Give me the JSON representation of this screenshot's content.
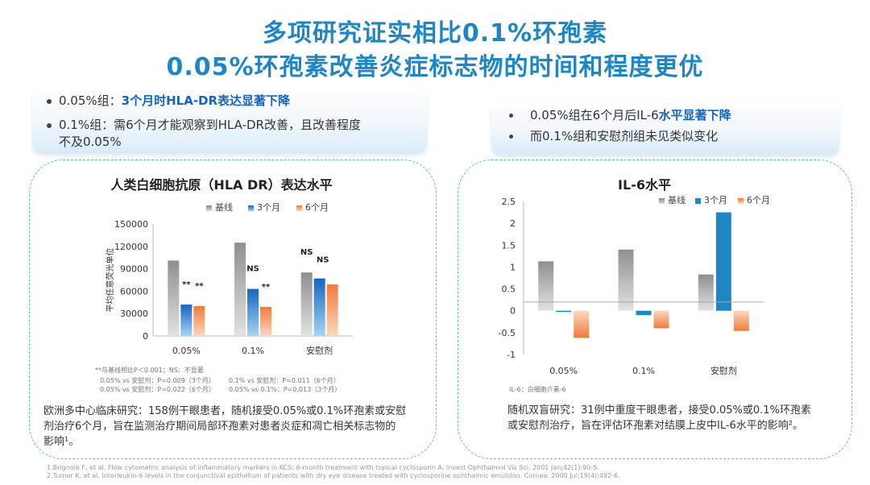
{
  "header": {
    "title_line1": "多项研究证实相比0.1%环孢素",
    "title_line2": "0.05%环孢素改善炎症标志物的时间和程度更优"
  },
  "left_bullets": {
    "b1_prefix": "0.05%组：",
    "b1_highlight": "3个月时HLA-DR表达显著下降",
    "b2_line1": "0.1%组：需6个月才能观察到HLA-DR改善，且改善程度",
    "b2_line2": "不及0.05%"
  },
  "right_bullets": {
    "b1_prefix": "0.05%组在6个月后IL-6",
    "b1_highlight": "水平显著下降",
    "b2": "而0.1%组和安慰剂组未见类似变化"
  },
  "left_panel": {
    "notes": {
      "line1": "**与基线相比P＜0.001；NS：不显著",
      "line2a": "0.05% vs 安慰剂：P=0.009（3个月）",
      "line2b": "0.1% vs 安慰剂：P=0.011（6个月）",
      "line3a": "0.05% vs 安慰剂：P=0.022（6个月）",
      "line3b": "0.05% vs 0.1%：P=0.013（3个月）"
    },
    "description_line1": "欧洲多中心临床研究：158例干眼患者，随机接受0.05%或0.1%环孢素或安慰",
    "description_line2": "剂治疗6个月，旨在监测治疗期间局部环孢素对患者炎症和凋亡相关标志物的",
    "description_line3": "影响¹。"
  },
  "right_panel": {
    "footnote": "IL-6：白细胞介素-6",
    "description_line1": "随机双盲研究：31例中重度干眼患者，接受0.05%或0.1%环孢素",
    "description_line2": "或安慰剂治疗，旨在评估环孢素对结膜上皮中IL-6水平的影响²。"
  },
  "references": {
    "r1": "1.Brignole F, et al. Flow cytometric analysis of inflammatory markers in KCS: 6-month treatment with topical cyclosporin A. Invest Ophthalmol Vis Sci. 2001 Jan;42(1):90-5.",
    "r2": "2.Turner K, et al. Interleukin-6 levels in the conjunctival epithelium of patients with dry eye disease treated with cyclosporine ophthalmic emulsion. Cornea. 2000 Jul;19(4):492-6."
  },
  "colors": {
    "baseline": "#9e9e9e",
    "month3": "#1f86c6",
    "month6": "#f08a4b",
    "title": "#1f86c6",
    "panel_border": "#58c8aa"
  },
  "chart_data": [
    {
      "type": "bar",
      "title": "人类白细胞抗原（HLA DR）表达水平",
      "ylabel": "平均任意荧光单位",
      "xlabel": "",
      "ylim": [
        0,
        150000
      ],
      "yticks": [
        "0",
        "30000",
        "60000",
        "90000",
        "120000",
        "150000"
      ],
      "categories": [
        "0.05%",
        "0.1%",
        "安慰剂"
      ],
      "series": [
        {
          "name": "基线",
          "values": [
            101000,
            125000,
            85000
          ]
        },
        {
          "name": "3个月",
          "values": [
            42000,
            63000,
            77000
          ]
        },
        {
          "name": "6个月",
          "values": [
            40000,
            39000,
            69000
          ]
        }
      ],
      "annotations": [
        {
          "category": 0,
          "series": 1,
          "text": "**"
        },
        {
          "category": 0,
          "series": 2,
          "text": "**"
        },
        {
          "category": 1,
          "series": 1,
          "text": "NS"
        },
        {
          "category": 1,
          "series": 2,
          "text": "**"
        },
        {
          "category": 2,
          "series": 0,
          "text": "NS"
        },
        {
          "category": 2,
          "series": 1,
          "text": "NS"
        }
      ],
      "legend_position": "top",
      "grid": false
    },
    {
      "type": "bar",
      "title": "IL-6水平",
      "ylabel": "",
      "xlabel": "",
      "ylim": [
        -1,
        2.5
      ],
      "yticks": [
        "-1",
        "-0.5",
        "0",
        "0.5",
        "1",
        "1.5",
        "2",
        "2.5"
      ],
      "categories": [
        "0.05%",
        "0.1%",
        "安慰剂"
      ],
      "series": [
        {
          "name": "基线",
          "values": [
            1.13,
            1.4,
            0.83
          ]
        },
        {
          "name": "3个月",
          "values": [
            -0.02,
            -0.1,
            2.25
          ]
        },
        {
          "name": "6个月",
          "values": [
            -0.62,
            -0.4,
            -0.46
          ]
        }
      ],
      "reference_line": 0.2,
      "legend_position": "top",
      "grid": false
    }
  ]
}
